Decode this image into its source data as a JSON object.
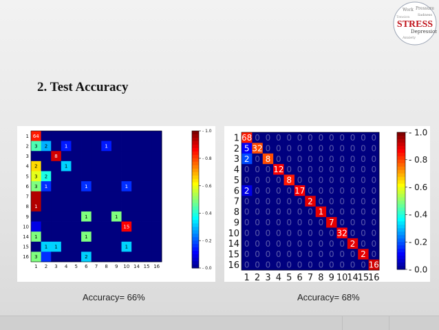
{
  "slide": {
    "title": "2. Test Accuracy",
    "logo": {
      "icon": "stress-word-cloud-logo",
      "text": "STRESS",
      "words": [
        "Pressure",
        "Sadness",
        "Anxiety",
        "Depression",
        "Work",
        "Tension"
      ]
    }
  },
  "colors": {
    "cmap": [
      "#00007f",
      "#0000ff",
      "#007fff",
      "#00ffff",
      "#7fff7f",
      "#ffff00",
      "#ff7f00",
      "#ff0000",
      "#7f0000"
    ]
  },
  "chart_data": [
    {
      "type": "heatmap",
      "caption": "Accuracy= 66%",
      "title": "",
      "xlabel": "",
      "ylabel": "",
      "labels": [
        "1",
        "2",
        "3",
        "4",
        "5",
        "6",
        "7",
        "8",
        "9",
        "10",
        "14",
        "15",
        "16"
      ],
      "colorbar": {
        "range": [
          0.0,
          1.0
        ],
        "ticks": [
          "0.0",
          "0.2",
          "0.4",
          "0.6",
          "0.8",
          "1.0"
        ]
      },
      "cells": [
        {
          "row": 0,
          "col": 0,
          "count": "64",
          "value": 0.85
        },
        {
          "row": 1,
          "col": 0,
          "count": "3",
          "value": 0.45
        },
        {
          "row": 1,
          "col": 1,
          "count": "2",
          "value": 0.3
        },
        {
          "row": 1,
          "col": 3,
          "count": "1",
          "value": 0.15
        },
        {
          "row": 1,
          "col": 7,
          "count": "1",
          "value": 0.15
        },
        {
          "row": 2,
          "col": 2,
          "count": "8",
          "value": 0.92
        },
        {
          "row": 3,
          "col": 0,
          "count": "2",
          "value": 0.66
        },
        {
          "row": 3,
          "col": 3,
          "count": "1",
          "value": 0.33
        },
        {
          "row": 4,
          "col": 0,
          "count": "3",
          "value": 0.6
        },
        {
          "row": 4,
          "col": 1,
          "count": "2",
          "value": 0.4
        },
        {
          "row": 5,
          "col": 0,
          "count": "3",
          "value": 0.5
        },
        {
          "row": 5,
          "col": 1,
          "count": "1",
          "value": 0.17
        },
        {
          "row": 5,
          "col": 5,
          "count": "1",
          "value": 0.17
        },
        {
          "row": 5,
          "col": 9,
          "count": "1",
          "value": 0.17
        },
        {
          "row": 6,
          "col": 0,
          "count": "",
          "value": 0.95
        },
        {
          "row": 7,
          "col": 0,
          "count": "1",
          "value": 0.95
        },
        {
          "row": 8,
          "col": 5,
          "count": "1",
          "value": 0.5
        },
        {
          "row": 8,
          "col": 8,
          "count": "1",
          "value": 0.5
        },
        {
          "row": 9,
          "col": 0,
          "count": "",
          "value": 0.1
        },
        {
          "row": 9,
          "col": 9,
          "count": "15",
          "value": 0.88
        },
        {
          "row": 10,
          "col": 0,
          "count": "1",
          "value": 0.5
        },
        {
          "row": 10,
          "col": 5,
          "count": "1",
          "value": 0.5
        },
        {
          "row": 11,
          "col": 1,
          "count": "1",
          "value": 0.33
        },
        {
          "row": 11,
          "col": 2,
          "count": "1",
          "value": 0.33
        },
        {
          "row": 11,
          "col": 9,
          "count": "1",
          "value": 0.33
        },
        {
          "row": 12,
          "col": 0,
          "count": "3",
          "value": 0.5
        },
        {
          "row": 12,
          "col": 1,
          "count": "",
          "value": 0.17
        },
        {
          "row": 12,
          "col": 5,
          "count": "2",
          "value": 0.33
        }
      ]
    },
    {
      "type": "heatmap",
      "caption": "Accuracy= 68%",
      "title": "",
      "xlabel": "",
      "ylabel": "",
      "labels": [
        "1",
        "2",
        "3",
        "4",
        "5",
        "6",
        "7",
        "8",
        "9",
        "10",
        "14",
        "15",
        "16"
      ],
      "colorbar": {
        "range": [
          0.0,
          1.0
        ],
        "ticks": [
          "0.0",
          "0.2",
          "0.4",
          "0.6",
          "0.8",
          "1.0"
        ]
      },
      "zero_label": "0",
      "cells": [
        {
          "row": 0,
          "col": 0,
          "count": "68",
          "value": 0.85
        },
        {
          "row": 1,
          "col": 0,
          "count": "5",
          "value": 0.12
        },
        {
          "row": 1,
          "col": 1,
          "count": "32",
          "value": 0.8
        },
        {
          "row": 2,
          "col": 0,
          "count": "2",
          "value": 0.2
        },
        {
          "row": 2,
          "col": 2,
          "count": "8",
          "value": 0.8
        },
        {
          "row": 3,
          "col": 3,
          "count": "12",
          "value": 0.88
        },
        {
          "row": 4,
          "col": 4,
          "count": "8",
          "value": 0.85
        },
        {
          "row": 5,
          "col": 0,
          "count": "2",
          "value": 0.1
        },
        {
          "row": 5,
          "col": 5,
          "count": "17",
          "value": 0.88
        },
        {
          "row": 6,
          "col": 6,
          "count": "2",
          "value": 0.9
        },
        {
          "row": 7,
          "col": 7,
          "count": "1",
          "value": 0.9
        },
        {
          "row": 8,
          "col": 8,
          "count": "7",
          "value": 0.9
        },
        {
          "row": 9,
          "col": 9,
          "count": "32",
          "value": 0.88
        },
        {
          "row": 10,
          "col": 10,
          "count": "2",
          "value": 0.9
        },
        {
          "row": 11,
          "col": 11,
          "count": "2",
          "value": 0.9
        },
        {
          "row": 12,
          "col": 12,
          "count": "16",
          "value": 0.92
        }
      ]
    }
  ]
}
